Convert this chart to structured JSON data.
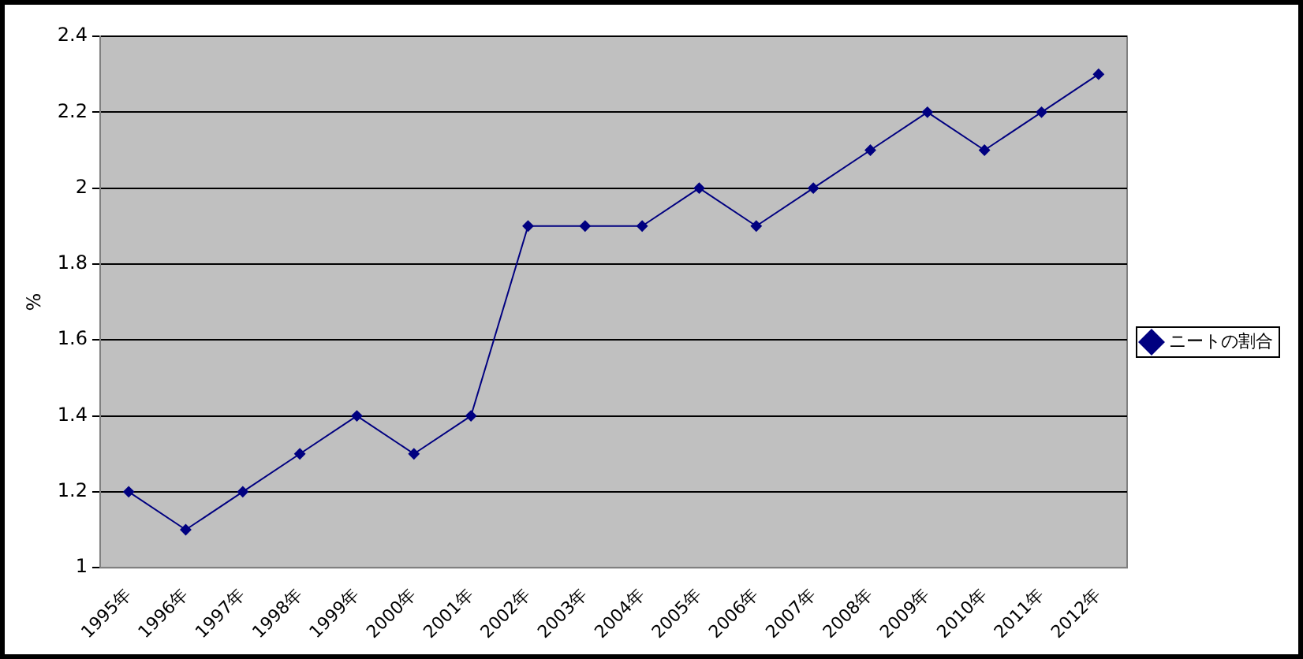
{
  "chart_data": {
    "type": "line",
    "ylabel": "%",
    "categories": [
      "1995年",
      "1996年",
      "1997年",
      "1998年",
      "1999年",
      "2000年",
      "2001年",
      "2002年",
      "2003年",
      "2004年",
      "2005年",
      "2006年",
      "2007年",
      "2008年",
      "2009年",
      "2010年",
      "2011年",
      "2012年"
    ],
    "series": [
      {
        "name": "ニートの割合",
        "color": "#000080",
        "values": [
          1.2,
          1.1,
          1.2,
          1.3,
          1.4,
          1.3,
          1.4,
          1.9,
          1.9,
          1.9,
          2.0,
          1.9,
          2.0,
          2.1,
          2.2,
          2.1,
          2.2,
          2.3
        ]
      }
    ],
    "ylim": [
      1,
      2.4
    ],
    "yticks": [
      1,
      1.2,
      1.4,
      1.6,
      1.8,
      2,
      2.2,
      2.4
    ],
    "grid": "y",
    "legend": "right",
    "marker": "diamond",
    "line_style": "solid"
  }
}
